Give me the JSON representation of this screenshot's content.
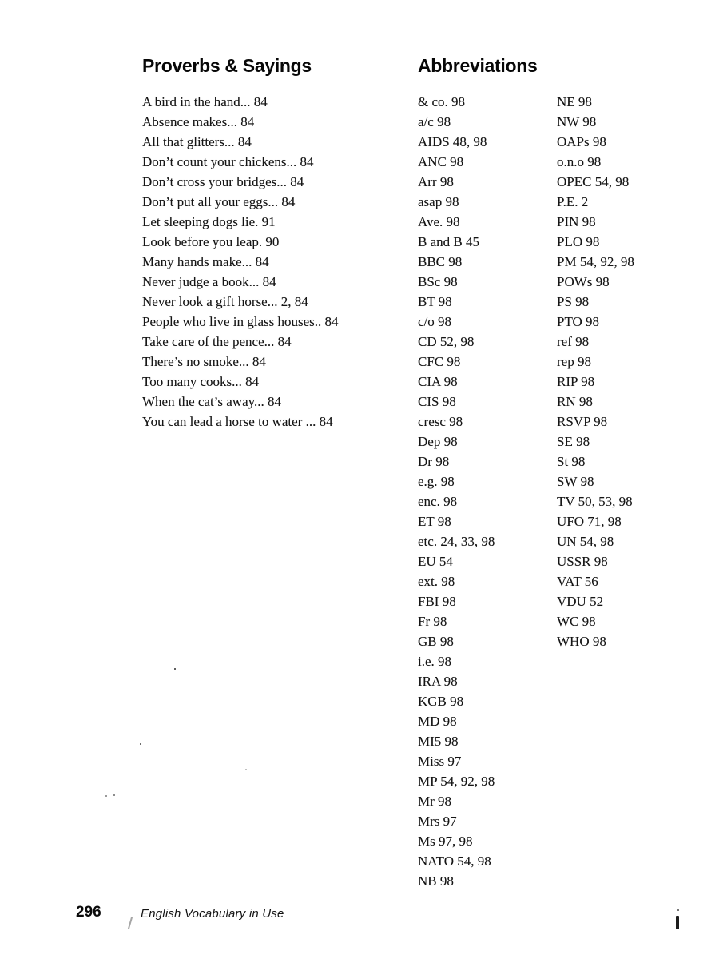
{
  "proverbs": {
    "heading": "Proverbs & Sayings",
    "entries": [
      "A bird in the hand... 84",
      "Absence makes... 84",
      "All that glitters... 84",
      "Don’t count your chickens... 84",
      "Don’t cross your bridges... 84",
      "Don’t put all your eggs... 84",
      "Let sleeping dogs lie. 91",
      "Look before you leap. 90",
      "Many hands make... 84",
      "Never judge a book... 84",
      "Never look a gift horse... 2, 84",
      "People who live in glass houses.. 84",
      "Take care of the pence... 84",
      "There’s no smoke... 84",
      "Too many cooks... 84",
      "When the cat’s away... 84",
      "You can lead a horse to water ... 84"
    ]
  },
  "abbreviations": {
    "heading": "Abbreviations",
    "column1": [
      "& co. 98",
      "a/c 98",
      "AIDS 48, 98",
      "ANC 98",
      "Arr 98",
      "asap 98",
      "Ave. 98",
      "B and B 45",
      "BBC 98",
      "BSc 98",
      "BT 98",
      "c/o 98",
      "CD 52, 98",
      "CFC 98",
      "CIA 98",
      "CIS 98",
      "cresc 98",
      "Dep 98",
      "Dr 98",
      "e.g. 98",
      "enc. 98",
      "ET 98",
      "etc. 24, 33, 98",
      "EU 54",
      "ext. 98",
      "FBI 98",
      "Fr 98",
      "GB 98",
      "i.e. 98",
      "IRA 98",
      "KGB 98",
      "MD 98",
      "MI5 98",
      "Miss 97",
      "MP 54, 92, 98",
      "Mr 98",
      "Mrs 97",
      "Ms 97, 98",
      "NATO 54, 98",
      "NB 98"
    ],
    "column2": [
      "NE 98",
      "NW 98",
      "OAPs 98",
      "o.n.o 98",
      "OPEC 54, 98",
      "P.E. 2",
      "PIN 98",
      "PLO 98",
      "PM 54, 92, 98",
      "POWs 98",
      "PS 98",
      "PTO 98",
      "ref 98",
      "rep 98",
      "RIP 98",
      "RN 98",
      "RSVP 98",
      "SE 98",
      "St 98",
      "SW 98",
      "TV 50, 53, 98",
      "UFO 71, 98",
      "UN 54, 98",
      "USSR 98",
      "VAT 56",
      "VDU 52",
      "WC 98",
      "WHO 98"
    ]
  },
  "footer": {
    "page_number": "296",
    "book_title": "English Vocabulary in Use"
  }
}
